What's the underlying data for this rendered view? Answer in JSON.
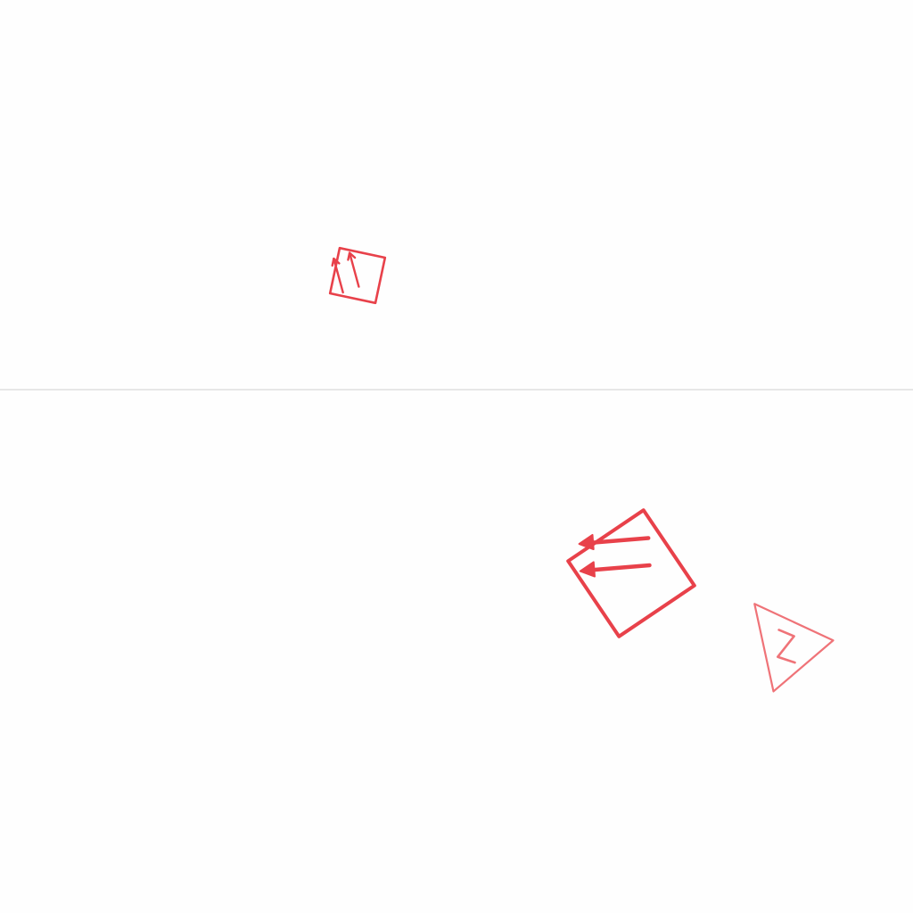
{
  "canvas": {
    "background": "#fefefe",
    "divider_color": "#d9d9d9"
  },
  "symbols": [
    {
      "name": "double-arrow-square-icon",
      "kind": "double-arrow-square",
      "color": "#e8414a"
    },
    {
      "name": "double-arrow-square-large-icon",
      "kind": "double-arrow-square",
      "color": "#e8414a"
    },
    {
      "name": "z-triangle-icon",
      "kind": "z-triangle",
      "color": "#ef7378"
    }
  ]
}
